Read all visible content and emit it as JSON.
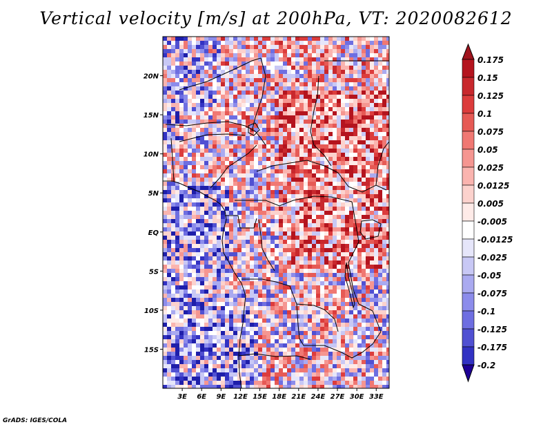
{
  "title": "Vertical velocity [m/s] at 200hPa, VT: 2020082612",
  "credit": "GrADS: IGES/COLA",
  "map": {
    "lon_range": [
      0,
      35
    ],
    "lat_range": [
      -20,
      25
    ],
    "lat_ticks": [
      {
        "value": 20,
        "label": "20N"
      },
      {
        "value": 15,
        "label": "15N"
      },
      {
        "value": 10,
        "label": "10N"
      },
      {
        "value": 5,
        "label": "5N"
      },
      {
        "value": 0,
        "label": "EQ"
      },
      {
        "value": -5,
        "label": "5S"
      },
      {
        "value": -10,
        "label": "10S"
      },
      {
        "value": -15,
        "label": "15S"
      }
    ],
    "lon_ticks": [
      {
        "value": 3,
        "label": "3E"
      },
      {
        "value": 6,
        "label": "6E"
      },
      {
        "value": 9,
        "label": "9E"
      },
      {
        "value": 12,
        "label": "12E"
      },
      {
        "value": 15,
        "label": "15E"
      },
      {
        "value": 18,
        "label": "18E"
      },
      {
        "value": 21,
        "label": "21E"
      },
      {
        "value": 24,
        "label": "24E"
      },
      {
        "value": 27,
        "label": "27E"
      },
      {
        "value": 30,
        "label": "30E"
      },
      {
        "value": 33,
        "label": "33E"
      }
    ]
  },
  "colorbar": {
    "levels": [
      {
        "label": "0.175",
        "color": "#b4141e"
      },
      {
        "label": "0.15",
        "color": "#c8282d"
      },
      {
        "label": "0.125",
        "color": "#dc3c3c"
      },
      {
        "label": "0.1",
        "color": "#e65a55"
      },
      {
        "label": "0.075",
        "color": "#f07873"
      },
      {
        "label": "0.05",
        "color": "#f59691"
      },
      {
        "label": "0.025",
        "color": "#fab4af"
      },
      {
        "label": "0.0125",
        "color": "#fcd2cd"
      },
      {
        "label": "0.005",
        "color": "#feebe8"
      },
      {
        "label": "-0.005",
        "color": "#ffffff"
      },
      {
        "label": "-0.0125",
        "color": "#e6e6fa"
      },
      {
        "label": "-0.025",
        "color": "#c8c8f5"
      },
      {
        "label": "-0.05",
        "color": "#aaaaf0"
      },
      {
        "label": "-0.075",
        "color": "#8c8ceb"
      },
      {
        "label": "-0.1",
        "color": "#6e6ee1"
      },
      {
        "label": "-0.125",
        "color": "#5050d2"
      },
      {
        "label": "-0.175",
        "color": "#3232c3"
      },
      {
        "label": "-0.2",
        "color": "#1e1eaa"
      }
    ],
    "top_color": "#a0141e",
    "bottom_color": "#1e0096"
  }
}
